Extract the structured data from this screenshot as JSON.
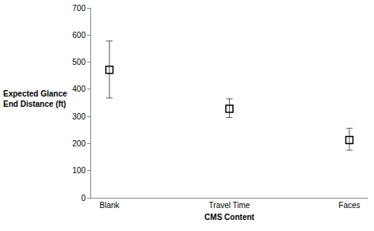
{
  "chart_data": {
    "type": "scatter",
    "x_label": "CMS Content",
    "y_label": "Expected Glance End Distance (ft)",
    "categories": [
      "Blank",
      "Travel Time",
      "Faces"
    ],
    "values": [
      472,
      328,
      213
    ],
    "error_plus": [
      106,
      37,
      43
    ],
    "error_minus": [
      104,
      32,
      38
    ],
    "color": "#000000",
    "marker": "square-open",
    "ylim": [
      0,
      700
    ],
    "yticks": [
      0,
      100,
      200,
      300,
      400,
      500,
      600,
      700
    ],
    "grid": false
  }
}
